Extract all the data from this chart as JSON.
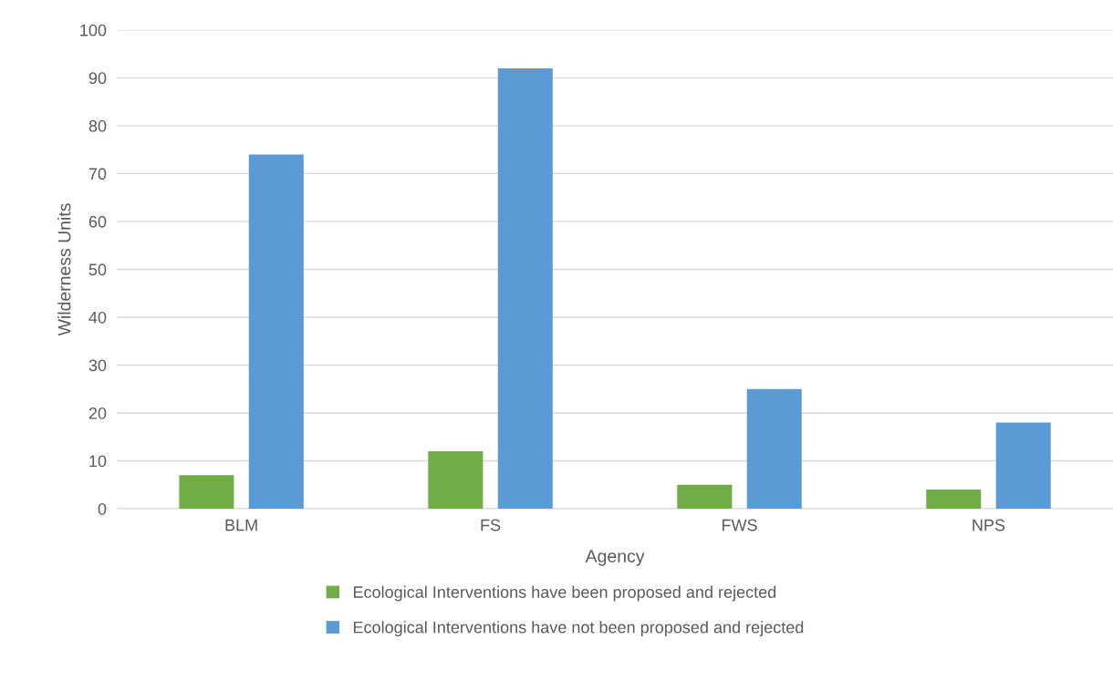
{
  "chart_data": {
    "type": "bar",
    "xlabel": "Agency",
    "ylabel": "Wilderness Units",
    "categories": [
      "BLM",
      "FS",
      "FWS",
      "NPS"
    ],
    "series": [
      {
        "name": "Ecological Interventions have been proposed and rejected",
        "color": "#70ad47",
        "values": [
          7,
          12,
          5,
          4
        ]
      },
      {
        "name": "Ecological Interventions have not been proposed and rejected",
        "color": "#5b9bd5",
        "values": [
          74,
          92,
          25,
          18
        ]
      }
    ],
    "ylim": [
      0,
      100
    ],
    "yticks": [
      0,
      10,
      20,
      30,
      40,
      50,
      60,
      70,
      80,
      90,
      100
    ],
    "grid": "y",
    "legend": "bottom"
  }
}
